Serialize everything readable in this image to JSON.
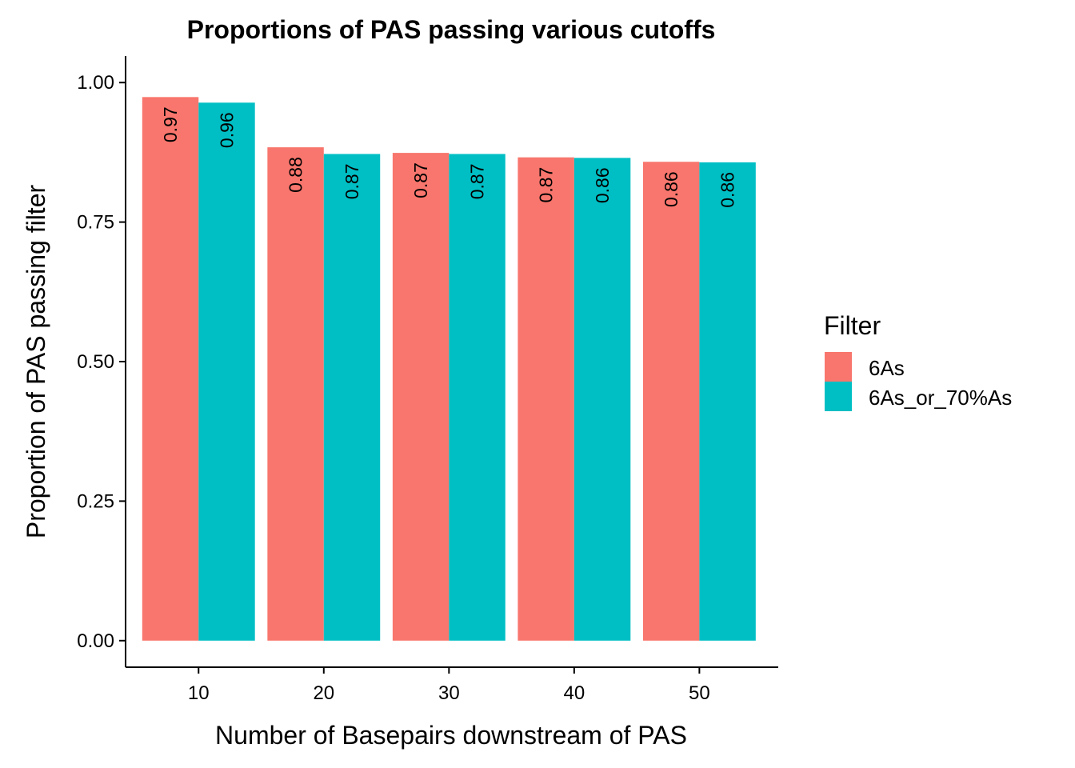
{
  "chart_data": {
    "type": "bar",
    "title": "Proportions of PAS passing various cutoffs",
    "xlabel": "Number of Basepairs downstream of PAS",
    "ylabel": "Proportion of PAS passing filter",
    "categories": [
      "10",
      "20",
      "30",
      "40",
      "50"
    ],
    "x": [
      10,
      20,
      30,
      40,
      50
    ],
    "xlim": [
      4.17,
      56.3
    ],
    "ylim": [
      -0.0476,
      1.0476
    ],
    "yticks": [
      0.0,
      0.25,
      0.5,
      0.75,
      1.0
    ],
    "ytick_labels": [
      "0.00",
      "0.25",
      "0.50",
      "0.75",
      "1.00"
    ],
    "xticks": [
      10,
      20,
      30,
      40,
      50
    ],
    "xtick_labels": [
      "10",
      "20",
      "30",
      "40",
      "50"
    ],
    "grid": false,
    "legend_title": "Filter",
    "legend_position": "right",
    "series": [
      {
        "name": "6As",
        "color": "#F8766D",
        "values": [
          0.974,
          0.884,
          0.874,
          0.866,
          0.858
        ],
        "labels": [
          "0.97",
          "0.88",
          "0.87",
          "0.87",
          "0.86"
        ]
      },
      {
        "name": "6As_or_70%As",
        "color": "#00BFC4",
        "values": [
          0.964,
          0.872,
          0.872,
          0.865,
          0.857
        ],
        "labels": [
          "0.96",
          "0.87",
          "0.87",
          "0.86",
          "0.86"
        ]
      }
    ]
  }
}
